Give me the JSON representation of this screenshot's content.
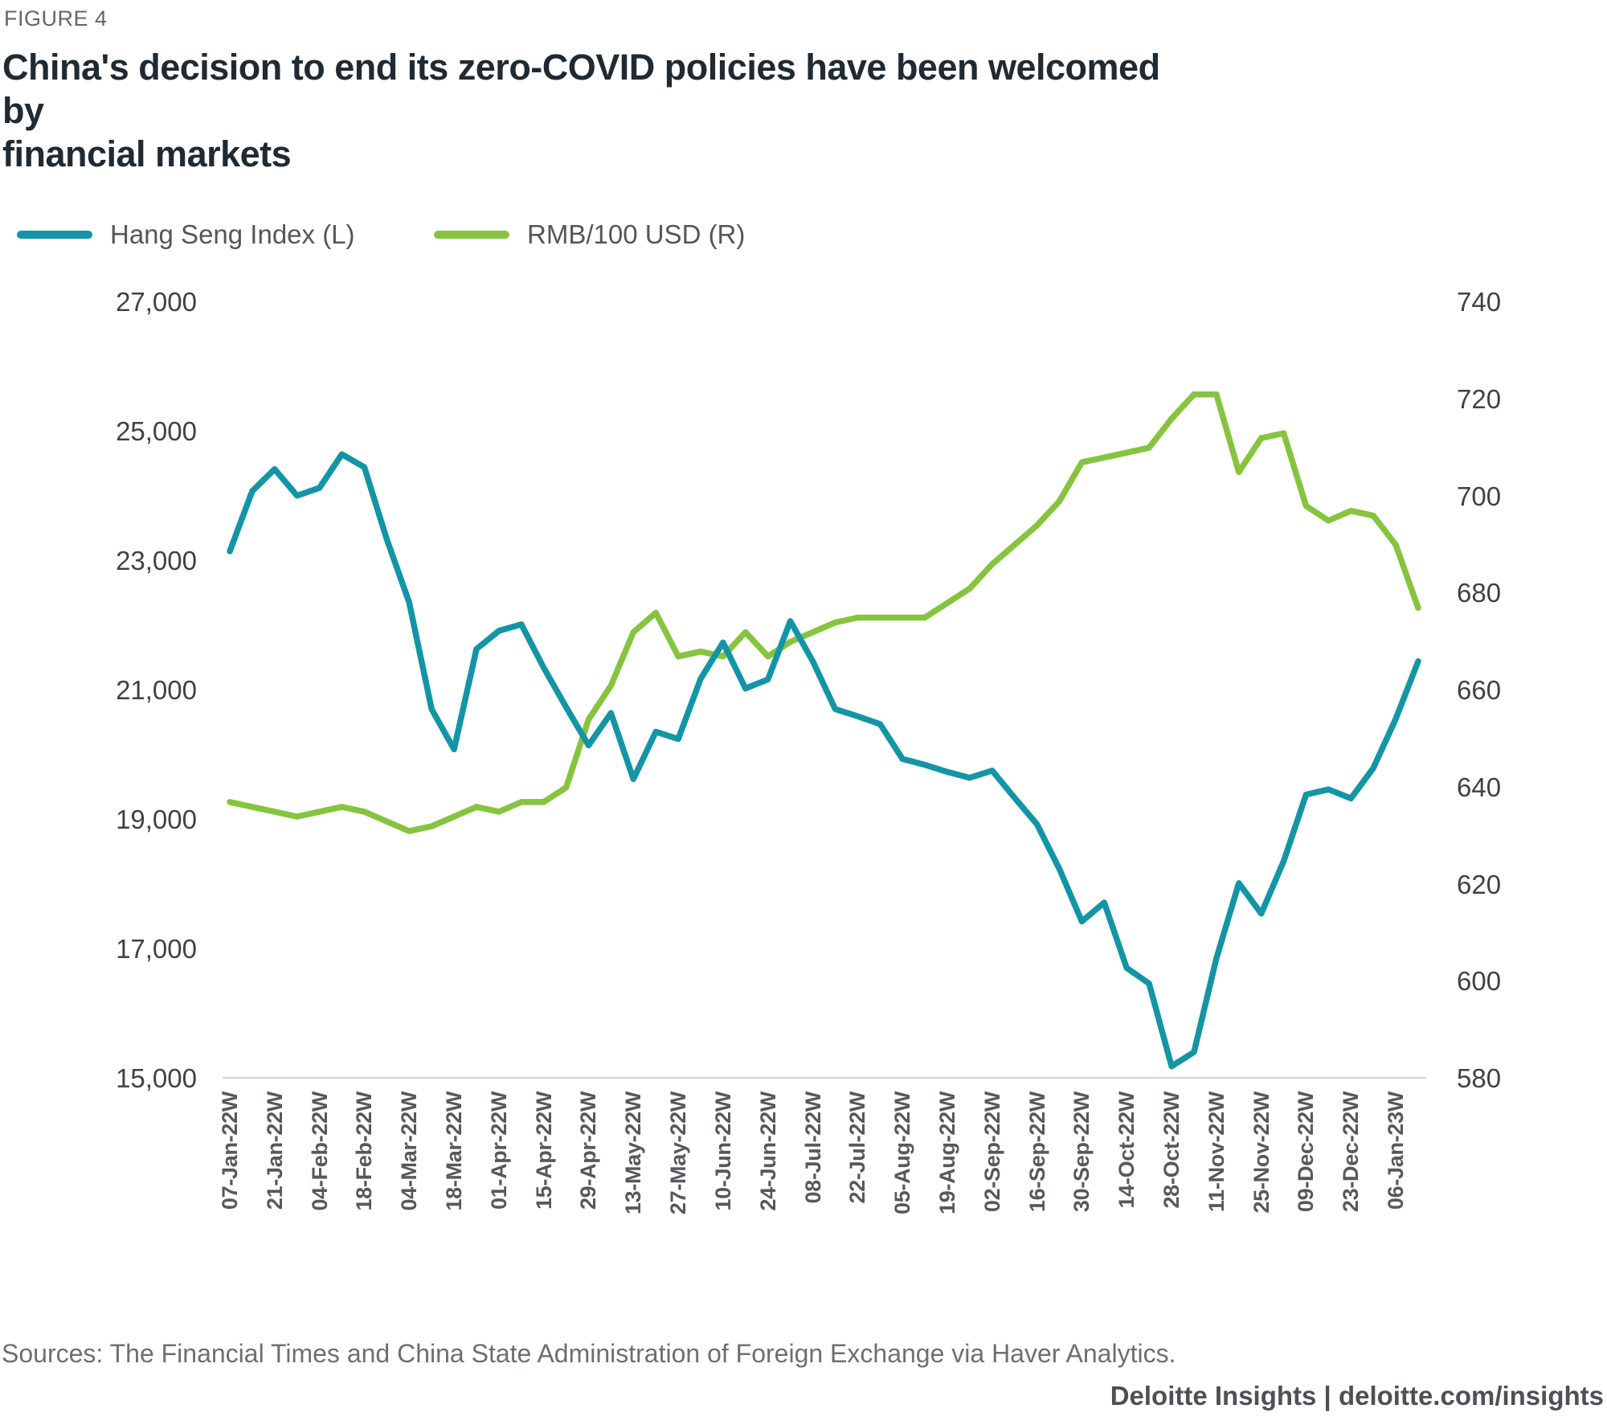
{
  "figure_label": "FIGURE 4",
  "title_line1": "China's decision to end its zero-COVID policies have been welcomed by",
  "title_line2": "financial markets",
  "legend": {
    "items": [
      {
        "label": "Hang Seng Index (L)",
        "color": "#1495a5"
      },
      {
        "label": "RMB/100 USD (R)",
        "color": "#86c440"
      }
    ]
  },
  "chart_data": {
    "type": "line",
    "title": "China's decision to end its zero-COVID policies have been welcomed by financial markets",
    "grid": "baseline-only",
    "legend_position": "top-left",
    "x_labels": [
      "07-Jan-22W",
      "21-Jan-22W",
      "04-Feb-22W",
      "18-Feb-22W",
      "04-Mar-22W",
      "18-Mar-22W",
      "01-Apr-22W",
      "15-Apr-22W",
      "29-Apr-22W",
      "13-May-22W",
      "27-May-22W",
      "10-Jun-22W",
      "24-Jun-22W",
      "08-Jul-22W",
      "22-Jul-22W",
      "05-Aug-22W",
      "19-Aug-22W",
      "02-Sep-22W",
      "16-Sep-22W",
      "30-Sep-22W",
      "14-Oct-22W",
      "28-Oct-22W",
      "11-Nov-22W",
      "25-Nov-22W",
      "09-Dec-22W",
      "23-Dec-22W",
      "06-Jan-23W"
    ],
    "points_per_label": 2,
    "n_points": 54,
    "left_axis": {
      "min": 15000,
      "max": 27000,
      "tick_labels": [
        "27,000",
        "25,000",
        "23,000",
        "21,000",
        "19,000",
        "17,000",
        "15,000"
      ],
      "tick_values": [
        27000,
        25000,
        23000,
        21000,
        19000,
        17000,
        15000
      ]
    },
    "right_axis": {
      "min": 580,
      "max": 740,
      "tick_labels": [
        "740",
        "720",
        "700",
        "680",
        "660",
        "640",
        "620",
        "600",
        "580"
      ],
      "tick_values": [
        740,
        720,
        700,
        680,
        660,
        640,
        620,
        600,
        580
      ]
    },
    "series": [
      {
        "name": "Hang Seng Index (L)",
        "axis": "left",
        "color": "#1495a5",
        "values": [
          23150,
          24080,
          24420,
          24010,
          24130,
          24650,
          24450,
          23340,
          22360,
          20710,
          20090,
          21640,
          21920,
          22020,
          21350,
          20740,
          20150,
          20650,
          19630,
          20360,
          20250,
          21180,
          21740,
          21030,
          21170,
          22070,
          21450,
          20710,
          20600,
          20480,
          19940,
          19850,
          19740,
          19650,
          19760,
          19340,
          18930,
          18240,
          17430,
          17720,
          16710,
          16470,
          15190,
          15410,
          16860,
          18020,
          17550,
          18360,
          19390,
          19470,
          19330,
          19800,
          20560,
          21450
        ]
      },
      {
        "name": "RMB/100 USD (R)",
        "axis": "right",
        "color": "#86c440",
        "values": [
          637,
          636,
          635,
          634,
          635,
          636,
          635,
          633,
          631,
          632,
          634,
          636,
          635,
          637,
          637,
          640,
          654,
          661,
          672,
          676,
          667,
          668,
          667,
          672,
          667,
          670,
          672,
          674,
          675,
          675,
          675,
          675,
          678,
          681,
          686,
          690,
          694,
          699,
          707,
          708,
          709,
          710,
          716,
          721,
          721,
          705,
          712,
          713,
          698,
          695,
          697,
          696,
          690,
          677
        ]
      }
    ]
  },
  "source": "Sources: The Financial Times and China State Administration of Foreign Exchange via Haver Analytics.",
  "brand": "Deloitte Insights | deloitte.com/insights"
}
